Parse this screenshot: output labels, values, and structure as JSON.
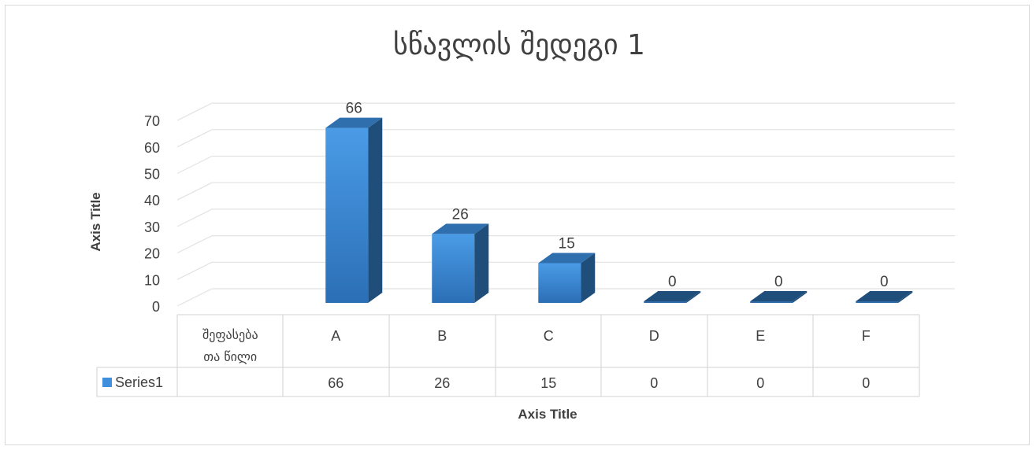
{
  "chart_data": {
    "type": "bar",
    "title": "სწავლის შედეგი 1",
    "xlabel": "Axis Title",
    "ylabel": "Axis Title",
    "ylim": [
      0,
      70
    ],
    "yticks": [
      0,
      10,
      20,
      30,
      40,
      50,
      60,
      70
    ],
    "categories": [
      "შეფასება თა წილი",
      "A",
      "B",
      "C",
      "D",
      "E",
      "F"
    ],
    "series": [
      {
        "name": "Series1",
        "values": [
          null,
          66,
          26,
          15,
          0,
          0,
          0
        ]
      }
    ],
    "data_labels": [
      "",
      "66",
      "26",
      "15",
      "0",
      "0",
      "0"
    ],
    "table_values": [
      "",
      "66",
      "26",
      "15",
      "0",
      "0",
      "0"
    ],
    "legend_position": "data-table",
    "grid": true,
    "colors": {
      "bar_front": "#3f8fdc",
      "bar_front_dark": "#2b6fb6",
      "bar_side": "#1f4e7a",
      "bar_top": "#2f6aa8",
      "legend_key": "#3f8fdc",
      "grid": "#e2e2e2",
      "text": "#404040"
    }
  }
}
